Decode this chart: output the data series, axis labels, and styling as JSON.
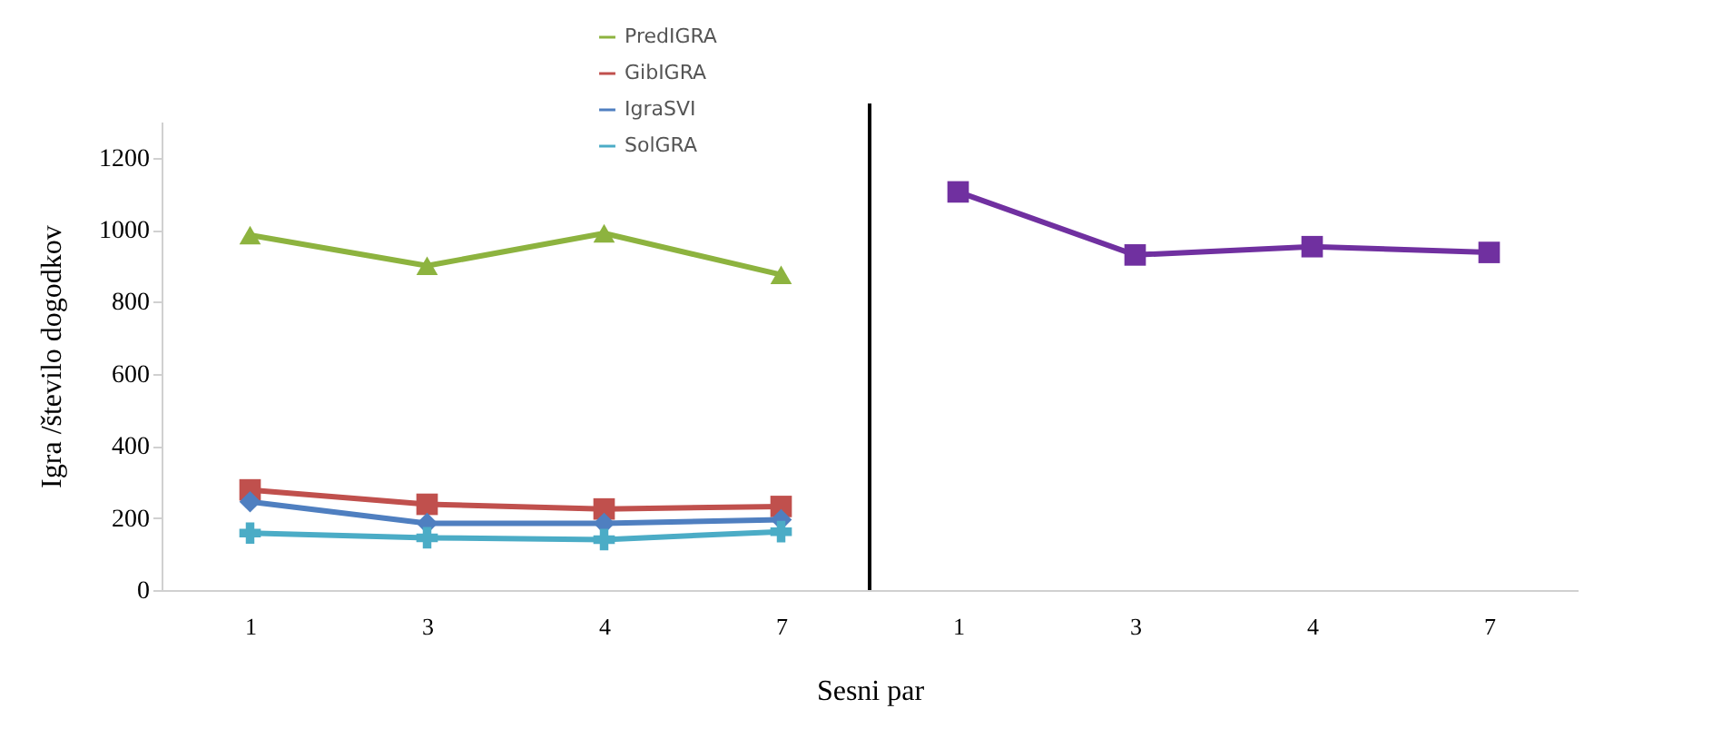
{
  "chart_data": {
    "type": "line",
    "xlabel": "Sesni par",
    "ylabel": "Igra /število dogodkov",
    "categories": [
      "1",
      "3",
      "4",
      "7",
      "1",
      "3",
      "4",
      "7"
    ],
    "series": [
      {
        "name": "PredIGRA",
        "color": "#8db33f",
        "marker": "triangle",
        "values": [
          985,
          900,
          990,
          875,
          null,
          null,
          null,
          null
        ]
      },
      {
        "name": "GibIGRA",
        "color": "#c0504d",
        "marker": "square",
        "values": [
          278,
          238,
          225,
          232,
          null,
          null,
          null,
          null
        ]
      },
      {
        "name": "IgraSVI",
        "color": "#4f7fc0",
        "marker": "diamond",
        "values": [
          245,
          185,
          185,
          195,
          null,
          null,
          null,
          null
        ]
      },
      {
        "name": "SolGRA",
        "color": "#4bacc6",
        "marker": "cross",
        "values": [
          158,
          145,
          140,
          162,
          null,
          null,
          null,
          null
        ]
      },
      {
        "color": "#7030a0",
        "marker": "square",
        "values": [
          null,
          null,
          null,
          null,
          1105,
          930,
          953,
          937
        ]
      }
    ],
    "ylim": [
      0,
      1300
    ],
    "yticks": [
      0,
      200,
      400,
      600,
      800,
      1000,
      1200
    ],
    "grid": false,
    "legend": "top"
  }
}
